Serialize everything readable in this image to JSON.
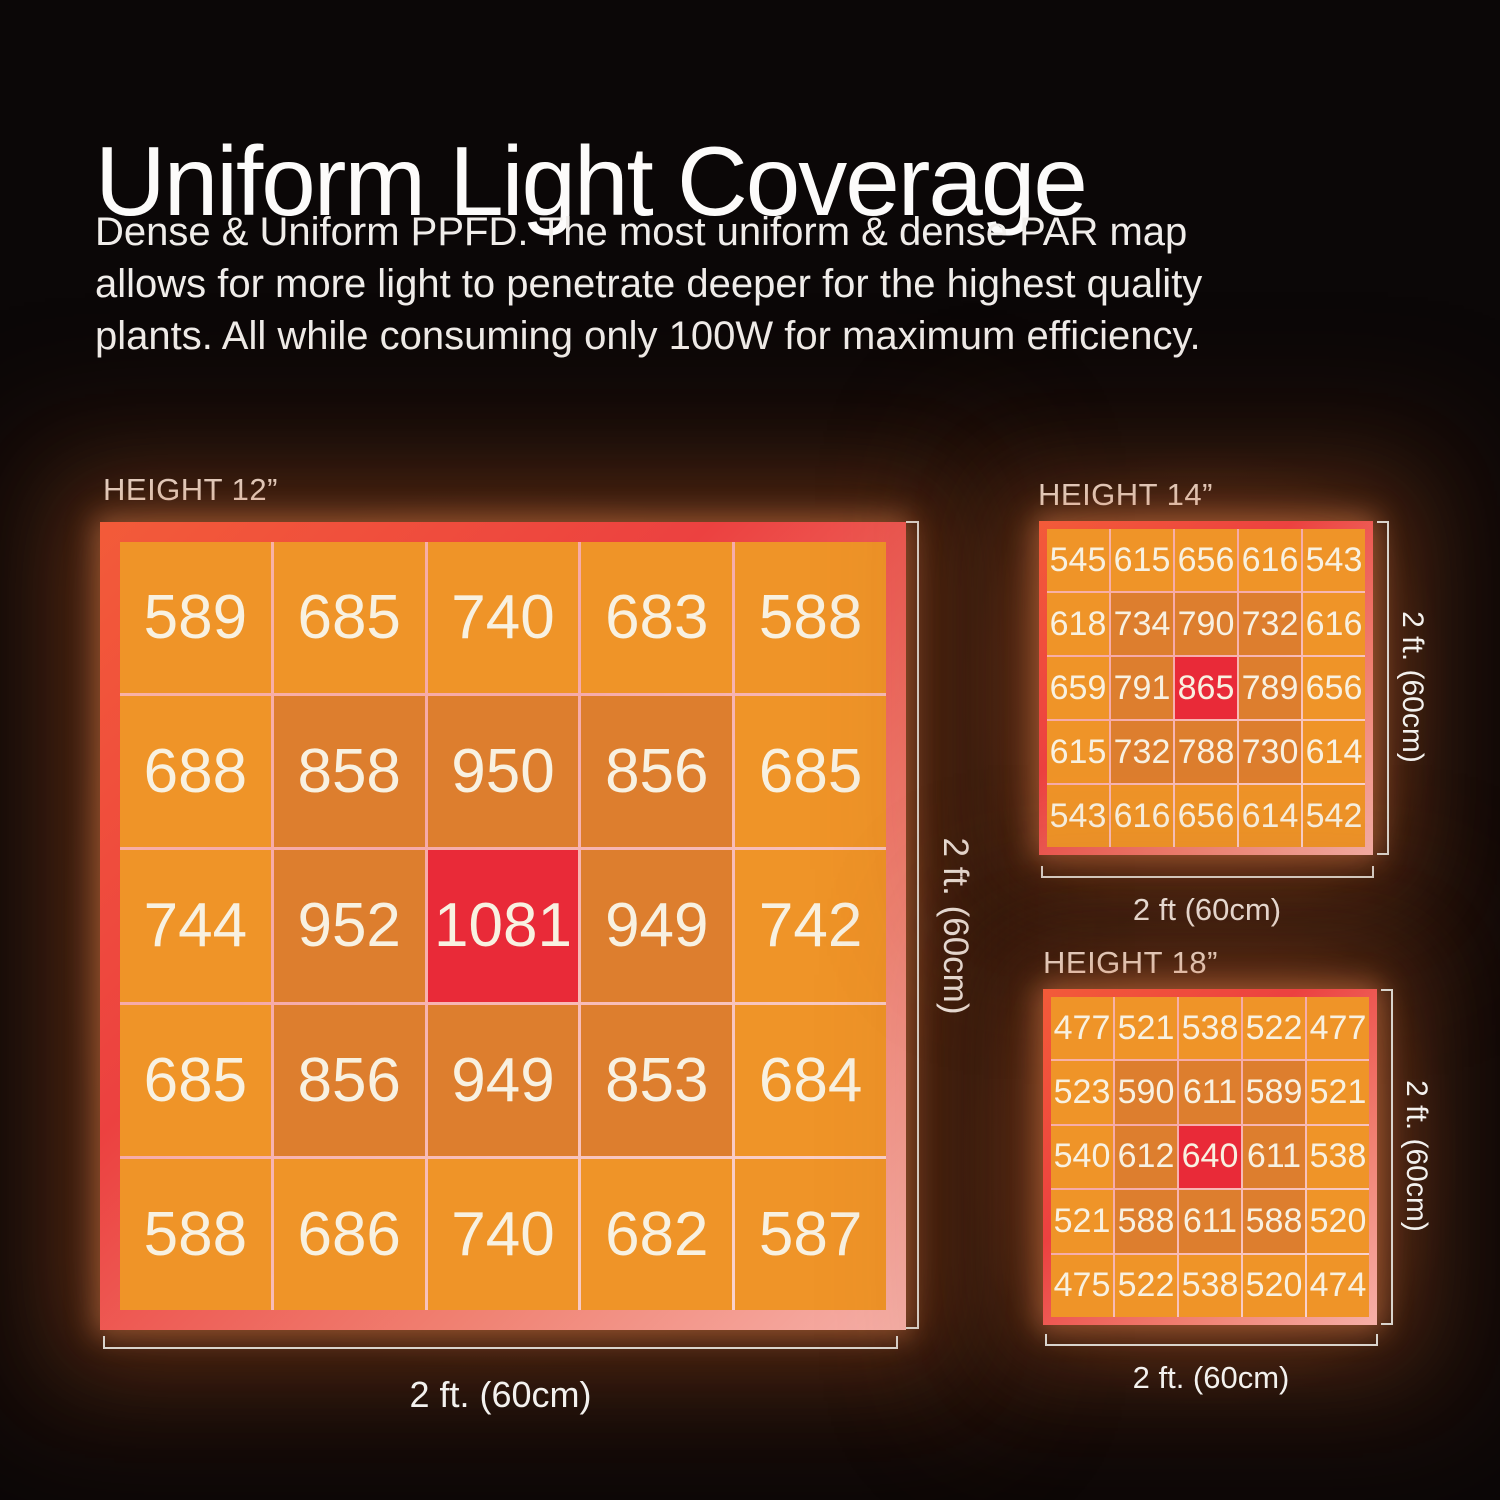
{
  "header": {
    "title": "Uniform Light Coverage",
    "description_lines": [
      "Dense & Uniform PPFD. The most uniform & dense PAR map",
      "allows for more light to penetrate deeper for the highest quality",
      "plants. All while consuming only 100W for maximum efficiency."
    ]
  },
  "colors": {
    "background": "#0b0707",
    "cell_light": "#ef9428",
    "cell_dark": "#dd7e2e",
    "cell_peak": "#e92a38",
    "frame_top": "#f3583a",
    "frame_red": "#ec4140",
    "frame_salmon": "#f4a29a",
    "value_text": "#f8f1e1",
    "bracket_line": "#d9d4cd"
  },
  "chart_data": [
    {
      "type": "heatmap",
      "title": "HEIGHT 12”",
      "x_label": "2 ft. (60cm)",
      "y_label": "2 ft. (60cm)",
      "rows": 5,
      "cols": 5,
      "values": [
        [
          589,
          685,
          740,
          683,
          588
        ],
        [
          688,
          858,
          950,
          856,
          685
        ],
        [
          744,
          952,
          1081,
          949,
          742
        ],
        [
          685,
          856,
          949,
          853,
          684
        ],
        [
          588,
          686,
          740,
          682,
          587
        ]
      ]
    },
    {
      "type": "heatmap",
      "title": "HEIGHT 14”",
      "x_label": "2 ft (60cm)",
      "y_label": "2 ft. (60cm)",
      "rows": 5,
      "cols": 5,
      "values": [
        [
          545,
          615,
          656,
          616,
          543
        ],
        [
          618,
          734,
          790,
          732,
          616
        ],
        [
          659,
          791,
          865,
          789,
          656
        ],
        [
          615,
          732,
          788,
          730,
          614
        ],
        [
          543,
          616,
          656,
          614,
          542
        ]
      ]
    },
    {
      "type": "heatmap",
      "title": "HEIGHT 18”",
      "x_label": "2 ft. (60cm)",
      "y_label": "2 ft. (60cm)",
      "rows": 5,
      "cols": 5,
      "values": [
        [
          477,
          521,
          538,
          522,
          477
        ],
        [
          523,
          590,
          611,
          589,
          521
        ],
        [
          540,
          612,
          640,
          611,
          538
        ],
        [
          521,
          588,
          611,
          588,
          520
        ],
        [
          475,
          522,
          538,
          520,
          474
        ]
      ]
    }
  ]
}
